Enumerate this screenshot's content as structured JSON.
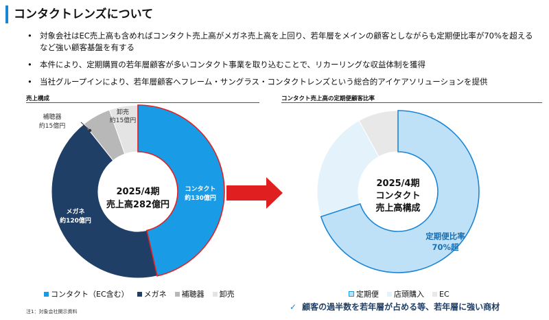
{
  "title": "コンタクトレンズについて",
  "bullets": [
    "対象会社はEC売上高も含めればコンタクト売上高がメガネ売上高を上回り、若年層をメインの顧客としながらも定期便比率が70%を超えるなど強い顧客基盤を有する",
    "本件により、定期購買の若年層顧客が多いコンタクト事業を取り込むことで、リカーリングな収益体制を獲得",
    "当社グループインにより、若年層顧客へフレーム・サングラス・コンタクトレンズという総合的アイケアソリューションを提供"
  ],
  "left_chart": {
    "section_title": "売上構成",
    "center_line1": "2025/4期",
    "center_line2": "売上高282億円",
    "labels": {
      "contact_name": "コンタクト",
      "contact_value": "約130億円",
      "megane_name": "メガネ",
      "megane_value": "約120億円",
      "hochoki_name": "補聴器",
      "hochoki_value": "約15億円",
      "oroshi_name": "卸売",
      "oroshi_value": "約15億円"
    },
    "legend": [
      "コンタクト（EC含む）",
      "メガネ",
      "補聴器",
      "卸売"
    ]
  },
  "right_chart": {
    "section_title": "コンタクト売上高の定期便顧客比率",
    "center_line1": "2025/4期",
    "center_line2": "コンタクト",
    "center_line3": "売上高構成",
    "ratio_label1": "定期便比率",
    "ratio_label2": "70%超",
    "legend": [
      "定期便",
      "店頭購入",
      "EC"
    ]
  },
  "tagline": "顧客の過半数を若年層が占める等、若年層に強い商材",
  "tagline_icon": "check-icon",
  "note": "注1：対象会社開示資料",
  "colors": {
    "accent": "#1a85d6",
    "contact": "#1a9be6",
    "megane": "#1f3f66",
    "hochoki": "#b8b8b8",
    "oroshi": "#e4e4e4",
    "teikibin": "#bfe1f7",
    "tento": "#e4f2fb",
    "ec": "#e8e8e8",
    "highlight": "#e02020"
  },
  "chart_data": [
    {
      "type": "pie",
      "title": "売上構成",
      "categories": [
        "コンタクト（EC含む）",
        "メガネ",
        "補聴器",
        "卸売"
      ],
      "values": [
        130,
        120,
        15,
        15
      ],
      "unit": "億円",
      "total_label": "売上高282億円",
      "legend_position": "bottom"
    },
    {
      "type": "pie",
      "title": "コンタクト売上高の定期便顧客比率",
      "categories": [
        "定期便",
        "店頭購入",
        "EC"
      ],
      "values": [
        70,
        22,
        8
      ],
      "unit": "%",
      "annotation": "定期便比率 70%超",
      "legend_position": "bottom"
    }
  ]
}
